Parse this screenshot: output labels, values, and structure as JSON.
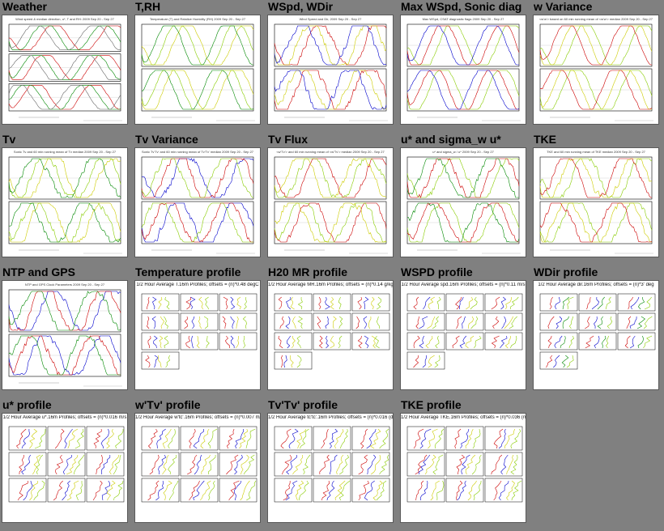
{
  "page": {
    "background": "#808080"
  },
  "plots": [
    {
      "id": "weather",
      "title": "Weather",
      "caption": "Wind speed & median direction, u*, T and RH: 2009 Sep 20 - Sep 27",
      "kind": "ts",
      "panels": 3,
      "colors": [
        "#cc0000",
        "#008800",
        "#666666"
      ]
    },
    {
      "id": "t-rh",
      "title": "T,RH",
      "caption": "Temperature (T) and Relative Humidity (RH) 2009 Sep 20 - Sep 27",
      "kind": "ts",
      "panels": 2,
      "colors": [
        "#cccc00",
        "#88cc00",
        "#008800"
      ]
    },
    {
      "id": "wspd-wdir",
      "title": "WSpd, WDir",
      "caption": "Wind Speed and Dir, 2009 Sep 20 - Sep 27",
      "kind": "ts",
      "panels": 2,
      "colors": [
        "#cc0000",
        "#cccc00",
        "#0000cc",
        "#008800"
      ]
    },
    {
      "id": "max-wspd-sonic-diag",
      "title": "Max WSpd, Sonic diag",
      "caption": "Max WSpd, CSAT diagnostic flags 2009 Sep 20 - Sep 27",
      "kind": "ts",
      "panels": 2,
      "colors": [
        "#88cc00",
        "#cc0000",
        "#0000cc",
        "#cccc00"
      ]
    },
    {
      "id": "w-variance",
      "title": "w Variance",
      "caption": "<w'w'> based on 60 min running mean of <w'w'> median 2009 Sep 20 - Sep 27",
      "kind": "ts",
      "panels": 2,
      "colors": [
        "#88cc00",
        "#cccc00",
        "#cc0000",
        "#0000cc"
      ]
    },
    {
      "id": "tv",
      "title": "Tv",
      "caption": "Sonic Tv and 60 min running mean of Tv median 2009 Sep 20 - Sep 27",
      "kind": "ts",
      "panels": 2,
      "colors": [
        "#cccc00",
        "#88cc00",
        "#008800"
      ]
    },
    {
      "id": "tv-variance",
      "title": "Tv Variance",
      "caption": "Sonic Tv'Tv' and 60 min running mean of Tv'Tv' median 2009 Sep 20 - Sep 27",
      "kind": "ts",
      "panels": 2,
      "colors": [
        "#0000cc",
        "#cc0000",
        "#88cc00",
        "#cccc00"
      ]
    },
    {
      "id": "tv-flux",
      "title": "Tv Flux",
      "caption": "<w'Tv'> and 60 min running mean of <w'Tv'> median 2009 Sep 20 - Sep 27",
      "kind": "ts",
      "panels": 2,
      "colors": [
        "#cc0000",
        "#88cc00",
        "#cccc00",
        "#008800"
      ]
    },
    {
      "id": "ustar-sigma-w",
      "title": "u* and sigma_w u*",
      "caption": "u* and sigma_w / u* 2009 Sep 20 - Sep 27",
      "kind": "ts",
      "panels": 2,
      "colors": [
        "#88cc00",
        "#cc0000",
        "#008800",
        "#cccc00"
      ]
    },
    {
      "id": "tke",
      "title": "TKE",
      "caption": "TKE and 60 min running mean of TKE median 2009 Sep 20 - Sep 27",
      "kind": "ts",
      "panels": 2,
      "colors": [
        "#88cc00",
        "#cccc00",
        "#cc0000",
        "#0000cc"
      ]
    },
    {
      "id": "ntp-gps",
      "title": "NTP and GPS",
      "caption": "NTP and GPS Clock Parameters 2009 Sep 20 - Sep 27",
      "kind": "ts",
      "panels": 2,
      "colors": [
        "#0000cc",
        "#cc0000",
        "#008800"
      ]
    },
    {
      "id": "temperature-profile",
      "title": "Temperature profile",
      "caption": "1/2 Hour Average T.16m Profiles; offsets = (n)*0.48 degC",
      "kind": "prof",
      "rows": 4,
      "colors": [
        "#cc0000",
        "#0000cc",
        "#cccc00",
        "#88cc00"
      ]
    },
    {
      "id": "h2o-mr-profile",
      "title": "H20 MR profile",
      "caption": "1/2 Hour Average MR.16m Profiles; offsets = (n)*0.14 g/kg",
      "kind": "prof",
      "rows": 4,
      "colors": [
        "#cc0000",
        "#0000cc",
        "#cccc00",
        "#88cc00"
      ]
    },
    {
      "id": "wspd-profile",
      "title": "WSPD profile",
      "caption": "1/2 Hour Average spd.16m Profiles; offsets = (n)*0.11 m/s",
      "kind": "prof",
      "rows": 4,
      "colors": [
        "#cc0000",
        "#0000cc",
        "#cccc00",
        "#88cc00"
      ]
    },
    {
      "id": "wdir-profile",
      "title": "WDir profile",
      "caption": "1/2 Hour Average dir.16m Profiles; offsets = (n)*3' deg",
      "kind": "prof",
      "rows": 4,
      "colors": [
        "#cc0000",
        "#0000cc",
        "#008800",
        "#88cc00"
      ]
    },
    {
      "id": "ustar-profile",
      "title": "u* profile",
      "caption": "1/2 Hour Average u*.16m Profiles; offsets = (n)*0.016 m/s",
      "kind": "prof",
      "rows": 3,
      "colors": [
        "#cc0000",
        "#0000cc",
        "#cccc00",
        "#88cc00"
      ]
    },
    {
      "id": "wtv-profile",
      "title": "w'Tv' profile",
      "caption": "1/2 Hour Average w'tc'.16m Profiles; offsets = (n)*0.007 m/s degC",
      "kind": "prof",
      "rows": 3,
      "colors": [
        "#cc0000",
        "#0000cc",
        "#cccc00",
        "#88cc00"
      ]
    },
    {
      "id": "tvtv-profile",
      "title": "Tv'Tv' profile",
      "caption": "1/2 Hour Average tc'tc'.16m Profiles; offsets = (n)*0.016 (degC)^2",
      "kind": "prof",
      "rows": 3,
      "colors": [
        "#cc0000",
        "#0000cc",
        "#cccc00",
        "#88cc00"
      ]
    },
    {
      "id": "tke-profile",
      "title": "TKE profile",
      "caption": "1/2 Hour Average TKE.16m Profiles; offsets = (n)*0.036 (m/s)^2",
      "kind": "prof",
      "rows": 3,
      "colors": [
        "#cc0000",
        "#0000cc",
        "#cccc00",
        "#88cc00"
      ]
    }
  ]
}
